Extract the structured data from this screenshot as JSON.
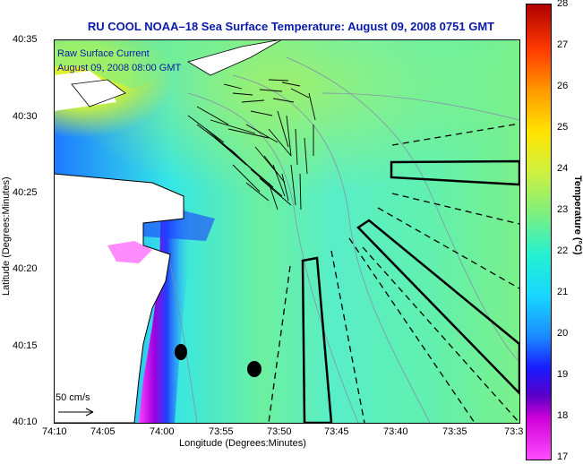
{
  "title": "RU COOL  NOAA–18  Sea Surface Temperature:  August 09, 2008 0751 GMT",
  "current_label_line1": "Raw Surface Current",
  "current_label_line2": "August 09, 2008 08:00 GMT",
  "scale_label": "50 cm/s",
  "x_axis": {
    "label": "Longitude (Degrees:Minutes)",
    "ticks": [
      "74:10",
      "74:05",
      "74:00",
      "73:55",
      "73:50",
      "73:45",
      "73:40",
      "73:35",
      "73:3"
    ]
  },
  "y_axis": {
    "label": "Latitude (Degrees:Minutes)",
    "ticks": [
      "40:35",
      "40:30",
      "40:25",
      "40:20",
      "40:15",
      "40:10"
    ]
  },
  "colorbar": {
    "label": "Temperature (°C)",
    "ticks": [
      "28",
      "27",
      "26",
      "25",
      "24",
      "23",
      "22",
      "21",
      "20",
      "19",
      "18",
      "17"
    ],
    "min": 17,
    "max": 28
  },
  "colors": {
    "title": "#0a1aa8",
    "land": "#ffffff",
    "ocean": "#5ff0c0",
    "warm": "#d8f23a",
    "cool": "#ff40ff"
  }
}
